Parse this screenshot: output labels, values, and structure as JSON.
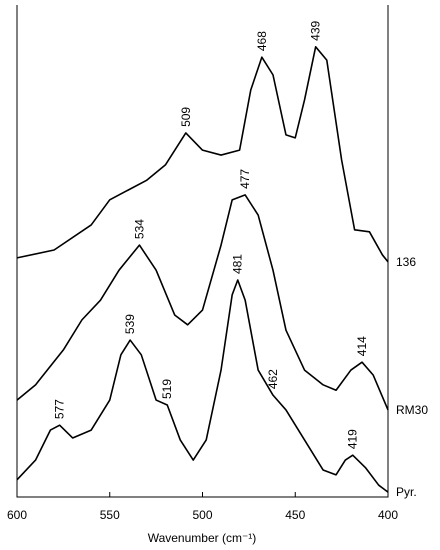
{
  "chart_data": {
    "type": "line",
    "x_label": "Wavenumber (cm⁻¹)",
    "xlim": [
      600,
      400
    ],
    "xticks": [
      600,
      550,
      500,
      450,
      400
    ],
    "ylim": [
      0,
      100
    ],
    "series": [
      {
        "name": "136",
        "color": "#000000",
        "x": [
          600,
          580,
          560,
          550,
          540,
          530,
          520,
          509,
          500,
          490,
          480,
          474,
          468,
          462,
          455,
          450,
          445,
          439,
          433,
          425,
          418,
          410,
          403,
          400
        ],
        "values": [
          48.6,
          50.2,
          55.3,
          60.4,
          62.4,
          64.4,
          67.5,
          74.0,
          70.5,
          69.5,
          70.5,
          82.7,
          89.4,
          85.8,
          73.6,
          73.0,
          80.7,
          91.5,
          88.8,
          68.5,
          54.3,
          53.9,
          49.2,
          47.8
        ],
        "peaks": [
          "509",
          "468",
          "439"
        ]
      },
      {
        "name": "RM30",
        "color": "#000000",
        "x": [
          600,
          590,
          575,
          565,
          555,
          545,
          534,
          525,
          515,
          508,
          500,
          490,
          484,
          477,
          470,
          462,
          455,
          445,
          435,
          428,
          420,
          414,
          408,
          400
        ],
        "values": [
          19.7,
          22.8,
          29.9,
          36.0,
          40.0,
          46.1,
          51.2,
          46.1,
          37.0,
          35.0,
          38.0,
          51.2,
          60.4,
          61.4,
          57.3,
          46.1,
          33.9,
          25.8,
          22.8,
          21.7,
          25.8,
          27.4,
          24.8,
          17.7
        ],
        "peaks": [
          "534",
          "477",
          "414"
        ]
      },
      {
        "name": "Pyr.",
        "color": "#000000",
        "x": [
          600,
          590,
          582,
          577,
          570,
          560,
          550,
          544,
          539,
          533,
          525,
          519,
          512,
          505,
          498,
          490,
          484,
          481,
          477,
          470,
          462,
          455,
          445,
          435,
          428,
          423,
          419,
          412,
          405,
          400
        ],
        "values": [
          3.5,
          7.5,
          13.6,
          14.6,
          12.0,
          13.6,
          19.7,
          28.9,
          31.9,
          28.9,
          19.7,
          18.7,
          11.6,
          7.5,
          11.6,
          25.8,
          41.1,
          44.1,
          40.0,
          25.8,
          20.7,
          17.7,
          11.6,
          5.5,
          4.5,
          7.5,
          8.5,
          5.9,
          2.4,
          1.0
        ],
        "peaks": [
          "577",
          "539",
          "519",
          "481",
          "462",
          "419"
        ]
      }
    ]
  }
}
